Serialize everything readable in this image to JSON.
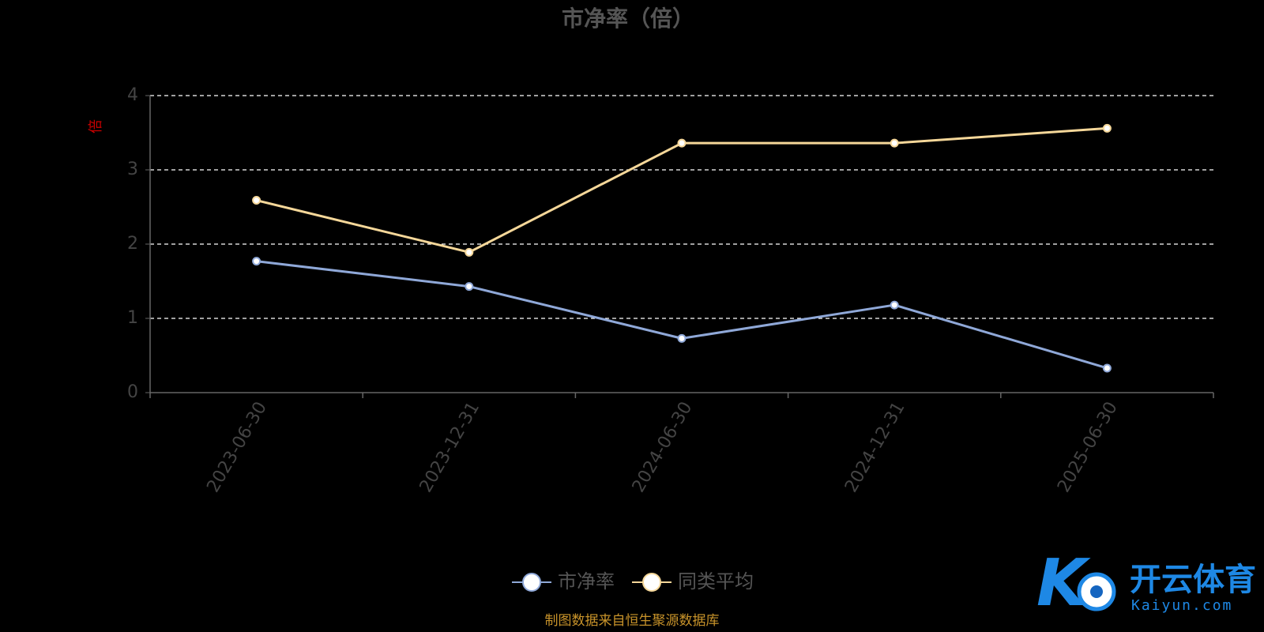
{
  "chart_data": {
    "type": "line",
    "title": "市净率（倍）",
    "ylabel": "倍",
    "categories": [
      "2023-06-30",
      "2023-12-31",
      "2024-06-30",
      "2024-12-31",
      "2025-06-30"
    ],
    "ylim": [
      0,
      4
    ],
    "yticks": [
      "0",
      "1",
      "2",
      "3",
      "4"
    ],
    "grid": true,
    "legend_position": "bottom-center",
    "series": [
      {
        "name": "市净率",
        "values": [
          1.77,
          1.43,
          0.73,
          1.18,
          0.33
        ],
        "color": "#8fa8d8"
      },
      {
        "name": "同类平均",
        "values": [
          2.59,
          1.89,
          3.36,
          3.36,
          3.56
        ],
        "color": "#f5d799"
      }
    ]
  },
  "source_note": "制图数据来自恒生聚源数据库",
  "watermark": {
    "brand": "开云体育",
    "domain": "Kaiyun.com"
  },
  "colors": {
    "background": "#000000",
    "grid": "#ffffff",
    "axis": "#666666",
    "source": "#c8932a"
  }
}
